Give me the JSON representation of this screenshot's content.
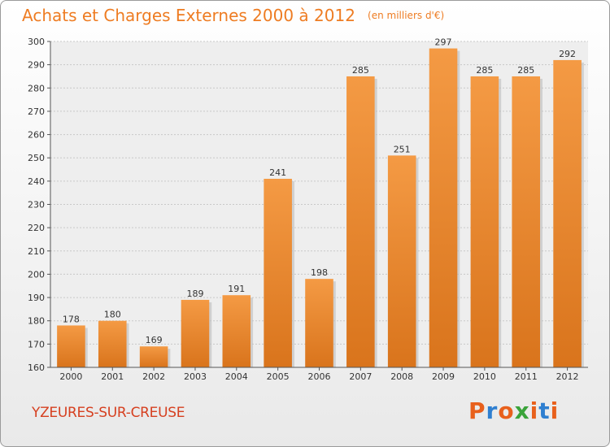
{
  "header": {
    "title": "Achats et Charges Externes 2000 à 2012",
    "subtitle": "(en milliers d'€)"
  },
  "footer": {
    "town": "YZEURES-SUR-CREUSE",
    "logo_text": "Proxiti",
    "logo_colors": [
      "#e8601c",
      "#2f7fd0",
      "#e8601c",
      "#3aa33a",
      "#e8601c",
      "#2f7fd0",
      "#e8601c"
    ]
  },
  "chart_data": {
    "type": "bar",
    "title": "Achats et Charges Externes 2000 à 2012",
    "subtitle": "(en milliers d'€)",
    "categories": [
      "2000",
      "2001",
      "2002",
      "2003",
      "2004",
      "2005",
      "2006",
      "2007",
      "2008",
      "2009",
      "2010",
      "2011",
      "2012"
    ],
    "values": [
      178,
      180,
      169,
      189,
      191,
      241,
      198,
      285,
      251,
      297,
      285,
      285,
      292
    ],
    "ylim": [
      160,
      300
    ],
    "yticks": [
      160,
      170,
      180,
      190,
      200,
      210,
      220,
      230,
      240,
      250,
      260,
      270,
      280,
      290,
      300
    ],
    "grid": true,
    "bar_color": "#f49a44",
    "bar_color_dark": "#d9741c"
  }
}
